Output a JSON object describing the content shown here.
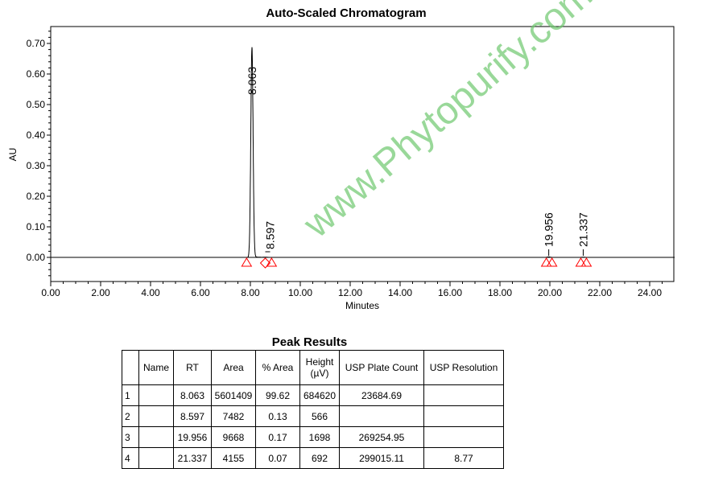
{
  "chart_data": {
    "type": "line",
    "title": "Auto-Scaled Chromatogram",
    "xlabel": "Minutes",
    "ylabel": "AU",
    "xlim": [
      0,
      25
    ],
    "ylim": [
      -0.07,
      0.75
    ],
    "xticks": [
      "0.00",
      "2.00",
      "4.00",
      "6.00",
      "8.00",
      "10.00",
      "12.00",
      "14.00",
      "16.00",
      "18.00",
      "20.00",
      "22.00",
      "24.00"
    ],
    "yticks": [
      "0.00",
      "0.10",
      "0.20",
      "0.30",
      "0.40",
      "0.50",
      "0.60",
      "0.70"
    ],
    "peaks": [
      {
        "rt": 8.063,
        "height_au": 0.6846,
        "label": "8.063"
      },
      {
        "rt": 8.597,
        "height_au": 0.0006,
        "label": "8.597"
      },
      {
        "rt": 19.956,
        "height_au": 0.0017,
        "label": "19.956"
      },
      {
        "rt": 21.337,
        "height_au": 0.0007,
        "label": "21.337"
      }
    ],
    "line_color": "#000000",
    "marker_color": "#ff0000"
  },
  "watermark": "www.Phytopurify.com",
  "table": {
    "title": "Peak Results",
    "headers": [
      "",
      "Name",
      "RT",
      "Area",
      "% Area",
      "Height (µV)",
      "USP Plate Count",
      "USP Resolution"
    ],
    "rows": [
      [
        "1",
        "",
        "8.063",
        "5601409",
        "99.62",
        "684620",
        "23684.69",
        ""
      ],
      [
        "2",
        "",
        "8.597",
        "7482",
        "0.13",
        "566",
        "",
        ""
      ],
      [
        "3",
        "",
        "19.956",
        "9668",
        "0.17",
        "1698",
        "269254.95",
        ""
      ],
      [
        "4",
        "",
        "21.337",
        "4155",
        "0.07",
        "692",
        "299015.11",
        "8.77"
      ]
    ]
  }
}
